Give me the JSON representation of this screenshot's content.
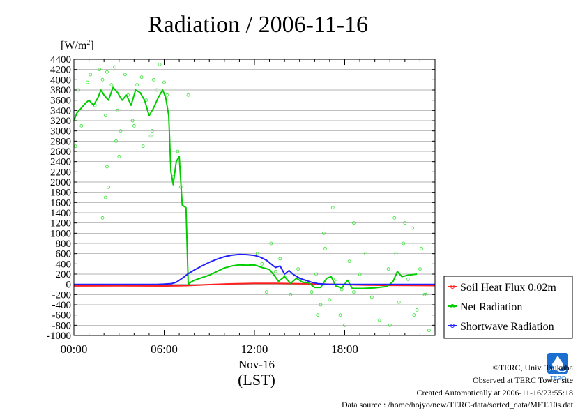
{
  "chart_data": {
    "type": "line",
    "title": "Radiation / 2006-11-16",
    "ylabel": "[W/m2]",
    "ylabel_main": "[W/m",
    "ylabel_sup": "2",
    "ylabel_end": "]",
    "xlabel_date": "Nov-16",
    "xlabel_tz": "(LST)",
    "ylim": [
      -1000,
      4400
    ],
    "xlim": [
      0,
      24
    ],
    "yticks": [
      "-1000",
      "-800",
      "-600",
      "-400",
      "-200",
      "0",
      "200",
      "400",
      "600",
      "800",
      "1000",
      "1200",
      "1400",
      "1600",
      "1800",
      "2000",
      "2200",
      "2400",
      "2600",
      "2800",
      "3000",
      "3200",
      "3400",
      "3600",
      "3800",
      "4000",
      "4200",
      "4400"
    ],
    "xticks": [
      "00:00",
      "06:00",
      "12:00",
      "18:00"
    ],
    "grid": true,
    "legend_placement": "right",
    "series": [
      {
        "name": "Soil Heat Flux 0.02m",
        "color": "#ff2020",
        "x": [
          0,
          3,
          6,
          7.5,
          9,
          10.5,
          12,
          13.5,
          15,
          16.5,
          18,
          19.5,
          21,
          22.5,
          24
        ],
        "y": [
          -30,
          -28,
          -32,
          -25,
          -5,
          10,
          20,
          18,
          12,
          5,
          -5,
          -15,
          -20,
          -22,
          -25
        ]
      },
      {
        "name": "Net Radiation",
        "color": "#00cc00",
        "x": [
          0,
          0.2,
          0.5,
          0.8,
          1.0,
          1.3,
          1.6,
          1.8,
          2.0,
          2.3,
          2.6,
          2.9,
          3.2,
          3.5,
          3.8,
          4.1,
          4.4,
          4.7,
          5.0,
          5.3,
          5.6,
          5.9,
          6.1,
          6.3,
          6.45,
          6.6,
          6.8,
          7.0,
          7.2,
          7.45,
          7.6,
          7.8,
          8.0,
          8.5,
          9.0,
          9.5,
          10.0,
          10.5,
          11.0,
          11.5,
          12.0,
          12.5,
          13.0,
          13.3,
          13.6,
          14.0,
          14.4,
          14.8,
          15.2,
          15.6,
          16.0,
          16.4,
          16.8,
          17.1,
          17.4,
          17.8,
          18.2,
          18.5,
          18.8,
          19.2,
          20.0,
          20.8,
          21.2,
          21.5,
          21.8,
          22.2,
          22.8
        ],
        "y": [
          3200,
          3350,
          3450,
          3550,
          3600,
          3500,
          3650,
          3800,
          3700,
          3600,
          3850,
          3750,
          3600,
          3700,
          3500,
          3800,
          3750,
          3600,
          3300,
          3450,
          3650,
          3800,
          3650,
          3300,
          2200,
          1950,
          2400,
          2500,
          1550,
          1500,
          0,
          50,
          80,
          130,
          180,
          250,
          320,
          360,
          380,
          375,
          380,
          330,
          290,
          180,
          60,
          150,
          20,
          120,
          40,
          30,
          -60,
          -60,
          120,
          150,
          -30,
          -70,
          80,
          -80,
          -80,
          -80,
          -70,
          -40,
          50,
          250,
          150,
          180,
          200
        ]
      },
      {
        "name": "Shortwave Radiation",
        "color": "#2020ff",
        "x": [
          0,
          1,
          2,
          3,
          4,
          5,
          5.5,
          6.0,
          6.5,
          6.8,
          7.0,
          7.3,
          7.6,
          8.0,
          8.5,
          9.0,
          9.5,
          10.0,
          10.5,
          11.0,
          11.5,
          12.0,
          12.4,
          12.8,
          13.1,
          13.4,
          13.7,
          14.0,
          14.3,
          14.6,
          15.0,
          15.4,
          15.8,
          16.2,
          16.6,
          17.0,
          18.0,
          19.0,
          20.0,
          21.0,
          22.0,
          23.0,
          24.0
        ],
        "y": [
          0,
          0,
          0,
          0,
          0,
          0,
          0,
          5,
          15,
          40,
          80,
          140,
          210,
          280,
          360,
          430,
          490,
          540,
          570,
          585,
          580,
          565,
          530,
          470,
          400,
          330,
          360,
          200,
          270,
          190,
          120,
          80,
          40,
          15,
          5,
          0,
          0,
          0,
          0,
          0,
          0,
          0,
          0
        ]
      }
    ],
    "scatter_points": {
      "color": "#00dd00",
      "x": [
        0.1,
        0.3,
        0.5,
        0.9,
        1.1,
        1.4,
        1.7,
        1.9,
        2.1,
        2.2,
        2.5,
        2.7,
        2.9,
        3.1,
        3.4,
        3.6,
        3.9,
        4.2,
        4.5,
        4.8,
        5.1,
        5.3,
        5.5,
        5.7,
        6.0,
        6.2,
        6.4,
        6.6,
        6.9,
        7.1,
        7.6,
        1.9,
        2.1,
        2.2,
        2.3,
        2.8,
        3.0,
        4.0,
        4.6,
        5.2,
        12.2,
        12.5,
        12.8,
        13.1,
        13.4,
        13.7,
        14.0,
        14.4,
        14.9,
        15.3,
        15.8,
        16.1,
        16.4,
        16.7,
        17.0,
        17.4,
        17.7,
        18.0,
        18.3,
        18.6,
        19.0,
        19.4,
        19.8,
        20.3,
        20.9,
        21.3,
        21.6,
        21.9,
        22.2,
        22.5,
        22.8,
        23.1,
        23.4,
        23.6,
        16.2,
        16.6,
        17.2,
        17.8,
        18.6,
        21.0,
        21.4,
        22.0,
        22.6,
        23.0,
        23.3
      ],
      "y": [
        2700,
        3800,
        3100,
        3950,
        4100,
        3500,
        4200,
        4000,
        3300,
        4150,
        3900,
        4250,
        3400,
        3000,
        4100,
        3700,
        3200,
        3900,
        4050,
        3600,
        2900,
        4000,
        3800,
        4300,
        3950,
        3700,
        2400,
        2100,
        2600,
        1900,
        3700,
        1300,
        1700,
        2300,
        1900,
        2800,
        2500,
        3100,
        2700,
        3000,
        600,
        400,
        -150,
        800,
        250,
        500,
        150,
        -200,
        300,
        50,
        -150,
        200,
        -400,
        700,
        -300,
        100,
        -600,
        -800,
        450,
        -150,
        200,
        600,
        -250,
        -700,
        300,
        1300,
        -350,
        800,
        100,
        1100,
        -500,
        700,
        -200,
        -900,
        -600,
        1000,
        1500,
        -100,
        1200,
        -800,
        600,
        1200,
        -600,
        300,
        -200
      ]
    },
    "legend": [
      {
        "label": "Soil Heat Flux 0.02m",
        "color": "#ff2020"
      },
      {
        "label": "Net Radiation",
        "color": "#00cc00"
      },
      {
        "label": "Shortwave Radiation",
        "color": "#2020ff"
      }
    ]
  },
  "footer": {
    "copyright": "©TERC, Univ. Tsukuba",
    "observed": "Observed at TERC Tower site",
    "created": "Created Automatically at 2006-11-16/23:55:18",
    "source": "Data source : /home/hojyo/new/TERC-data/sorted_data/MET.10s.dat",
    "logo_text": "TERC",
    "logo_color": "#1a6fd0"
  }
}
